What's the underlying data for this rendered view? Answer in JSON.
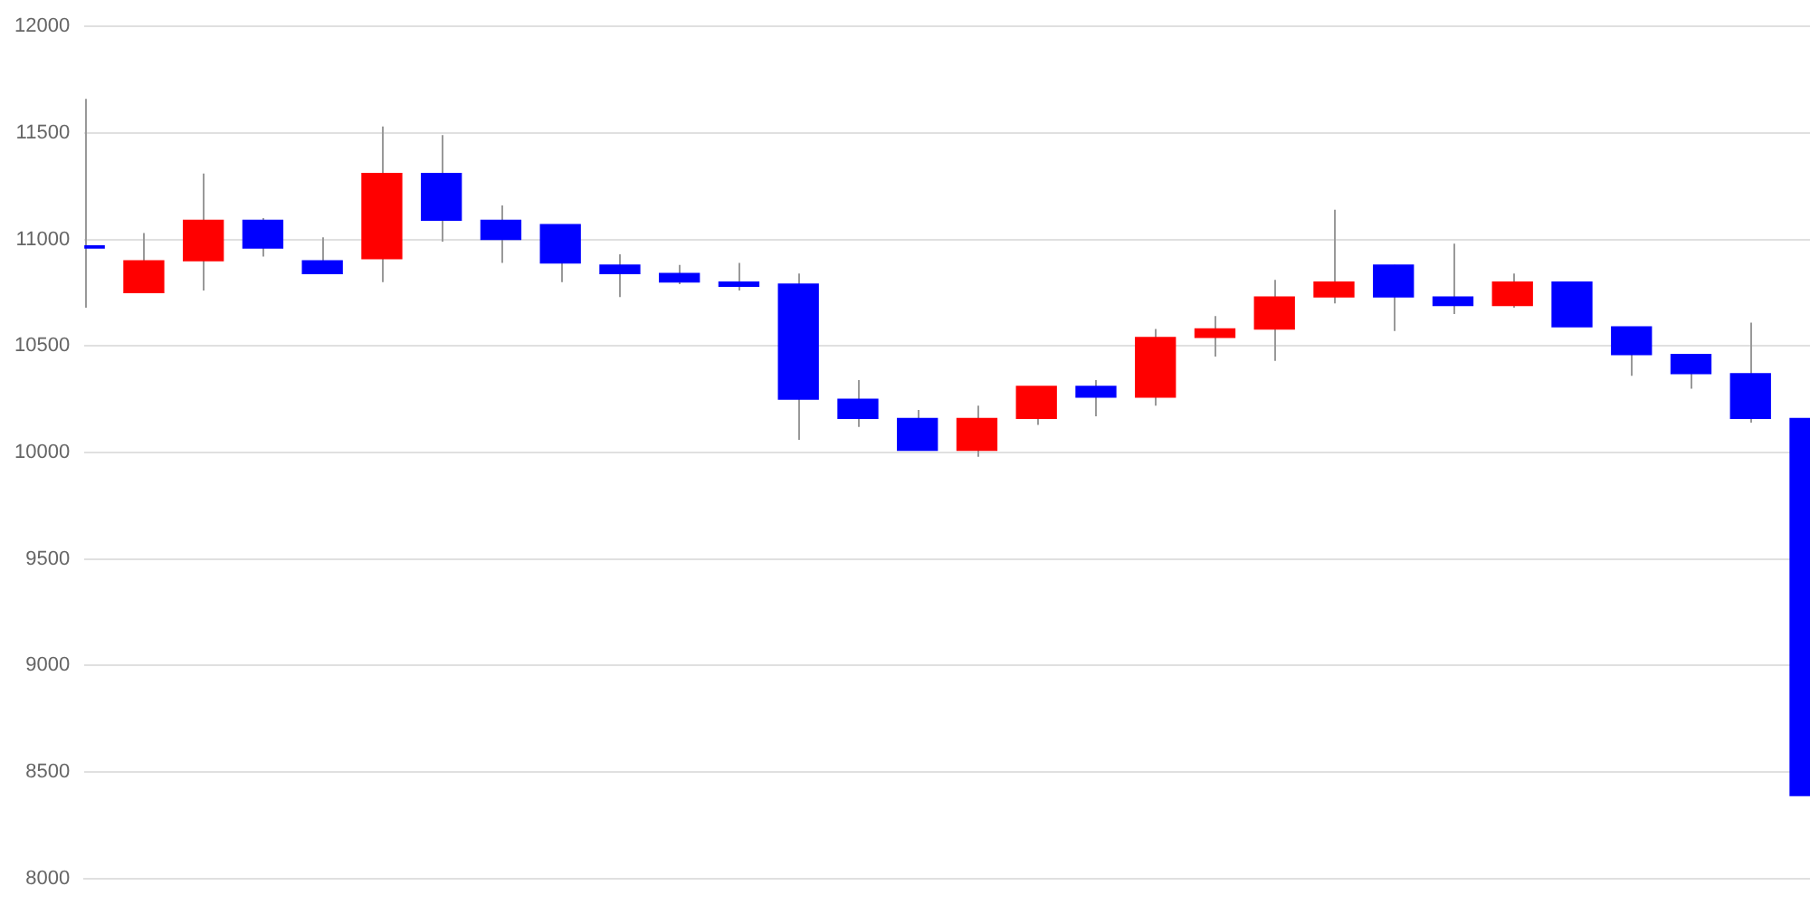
{
  "chart_data": {
    "type": "candlestick",
    "categories": [
      null,
      null,
      null,
      null,
      null,
      null,
      null,
      null,
      null,
      null,
      null,
      null,
      null,
      null,
      null,
      null,
      null,
      null,
      null,
      null,
      null,
      null,
      null,
      null,
      null,
      null,
      null,
      null,
      null,
      null
    ],
    "ohlc": [
      [
        10970,
        11660,
        10680,
        10960
      ],
      [
        10750,
        11030,
        10750,
        10900
      ],
      [
        10900,
        11310,
        10760,
        11090
      ],
      [
        11090,
        11100,
        10920,
        10960
      ],
      [
        10900,
        11010,
        10840,
        10840
      ],
      [
        10910,
        11530,
        10800,
        11310
      ],
      [
        11310,
        11490,
        10990,
        11090
      ],
      [
        11090,
        11160,
        10890,
        11000
      ],
      [
        11070,
        11070,
        10800,
        10890
      ],
      [
        10880,
        10930,
        10730,
        10840
      ],
      [
        10840,
        10880,
        10790,
        10800
      ],
      [
        10800,
        10890,
        10760,
        10780
      ],
      [
        10790,
        10840,
        10060,
        10250
      ],
      [
        10250,
        10340,
        10120,
        10160
      ],
      [
        10160,
        10200,
        10010,
        10010
      ],
      [
        10010,
        10220,
        9980,
        10160
      ],
      [
        10160,
        10310,
        10130,
        10310
      ],
      [
        10310,
        10340,
        10170,
        10260
      ],
      [
        10260,
        10580,
        10220,
        10540
      ],
      [
        10540,
        10640,
        10450,
        10580
      ],
      [
        10580,
        10810,
        10430,
        10730
      ],
      [
        10730,
        11140,
        10700,
        10800
      ],
      [
        10880,
        10880,
        10570,
        10730
      ],
      [
        10730,
        10980,
        10650,
        10690
      ],
      [
        10690,
        10840,
        10680,
        10800
      ],
      [
        10800,
        10800,
        10590,
        10590
      ],
      [
        10590,
        10590,
        10360,
        10460
      ],
      [
        10460,
        10460,
        10300,
        10370
      ],
      [
        10370,
        10610,
        10140,
        10160
      ],
      [
        10160,
        10160,
        8380,
        8390
      ]
    ],
    "colors": [
      "#0000ff",
      "#ff0000",
      "#ff0000",
      "#0000ff",
      "#0000ff",
      "#ff0000",
      "#0000ff",
      "#0000ff",
      "#0000ff",
      "#0000ff",
      "#0000ff",
      "#0000ff",
      "#0000ff",
      "#0000ff",
      "#0000ff",
      "#ff0000",
      "#ff0000",
      "#0000ff",
      "#ff0000",
      "#ff0000",
      "#ff0000",
      "#ff0000",
      "#0000ff",
      "#0000ff",
      "#ff0000",
      "#0000ff",
      "#0000ff",
      "#0000ff",
      "#0000ff",
      "#0000ff"
    ],
    "ylim": [
      8000,
      12000
    ],
    "yticks": [
      8000,
      8500,
      9000,
      9500,
      10000,
      10500,
      11000,
      11500,
      12000
    ],
    "grid": "y",
    "tick_labels": "y"
  }
}
